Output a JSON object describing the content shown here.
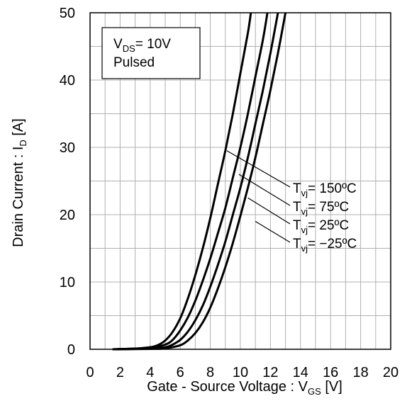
{
  "chart_data": {
    "type": "line",
    "xlabel": "Gate - Source Voltage : V",
    "xlabel_sub": "GS",
    "xlabel_unit": " [V]",
    "ylabel": "Drain Current : I",
    "ylabel_sub": "D",
    "ylabel_unit": " [A]",
    "xlim": [
      0,
      20
    ],
    "ylim": [
      0,
      50
    ],
    "xticks": [
      "0",
      "2",
      "4",
      "6",
      "8",
      "10",
      "12",
      "14",
      "16",
      "18",
      "20"
    ],
    "yticks": [
      "0",
      "10",
      "20",
      "30",
      "40",
      "50"
    ],
    "grid": true,
    "annotation": {
      "line1_main": "V",
      "line1_sub": "DS",
      "line1_rest": "= 10V",
      "line2": "Pulsed"
    },
    "series": [
      {
        "name_main": "T",
        "name_sub": "vj",
        "name_rest": "= 150ºC",
        "points": [
          [
            1.5,
            0
          ],
          [
            3,
            0.1
          ],
          [
            4,
            0.3
          ],
          [
            4.5,
            0.6
          ],
          [
            5,
            1.3
          ],
          [
            5.5,
            2.6
          ],
          [
            6,
            4.6
          ],
          [
            6.5,
            7.5
          ],
          [
            7,
            11
          ],
          [
            7.5,
            15
          ],
          [
            8,
            19.5
          ],
          [
            8.5,
            24.5
          ],
          [
            9,
            29.5
          ],
          [
            9.5,
            35
          ],
          [
            10,
            41
          ],
          [
            10.5,
            47
          ],
          [
            10.7,
            50
          ]
        ]
      },
      {
        "name_main": "T",
        "name_sub": "vj",
        "name_rest": "= 75ºC",
        "points": [
          [
            1.5,
            0
          ],
          [
            3,
            0.1
          ],
          [
            4,
            0.2
          ],
          [
            5,
            0.7
          ],
          [
            5.5,
            1.4
          ],
          [
            6,
            2.8
          ],
          [
            6.5,
            4.7
          ],
          [
            7,
            7.2
          ],
          [
            7.5,
            10.2
          ],
          [
            8,
            13.5
          ],
          [
            8.5,
            17.2
          ],
          [
            9,
            21
          ],
          [
            9.5,
            25.5
          ],
          [
            10,
            30
          ],
          [
            10.5,
            35
          ],
          [
            11,
            40.5
          ],
          [
            11.5,
            46
          ],
          [
            11.8,
            50
          ]
        ]
      },
      {
        "name_main": "T",
        "name_sub": "vj",
        "name_rest": "= 25ºC",
        "points": [
          [
            1.5,
            0
          ],
          [
            4,
            0.1
          ],
          [
            5,
            0.3
          ],
          [
            5.5,
            0.7
          ],
          [
            6,
            1.4
          ],
          [
            6.5,
            2.6
          ],
          [
            7,
            4.3
          ],
          [
            7.5,
            6.5
          ],
          [
            8,
            9.3
          ],
          [
            8.5,
            12.5
          ],
          [
            9,
            16
          ],
          [
            9.5,
            20
          ],
          [
            10,
            24
          ],
          [
            10.5,
            28.5
          ],
          [
            11,
            33.5
          ],
          [
            11.5,
            38.5
          ],
          [
            12,
            44
          ],
          [
            12.5,
            50
          ]
        ]
      },
      {
        "name_main": "T",
        "name_sub": "vj",
        "name_rest": "= −25ºC",
        "points": [
          [
            1.5,
            0
          ],
          [
            4,
            0.05
          ],
          [
            5,
            0.15
          ],
          [
            6,
            0.6
          ],
          [
            6.5,
            1.3
          ],
          [
            7,
            2.4
          ],
          [
            7.5,
            4
          ],
          [
            8,
            6.2
          ],
          [
            8.5,
            9
          ],
          [
            9,
            12.2
          ],
          [
            9.5,
            15.8
          ],
          [
            10,
            19.8
          ],
          [
            10.5,
            24
          ],
          [
            11,
            28.5
          ],
          [
            11.5,
            33.5
          ],
          [
            12,
            38.5
          ],
          [
            12.5,
            44
          ],
          [
            13,
            50
          ]
        ]
      }
    ],
    "colors": {
      "line": "#000000",
      "grid": "#b0b0b0",
      "frame": "#000000"
    }
  }
}
